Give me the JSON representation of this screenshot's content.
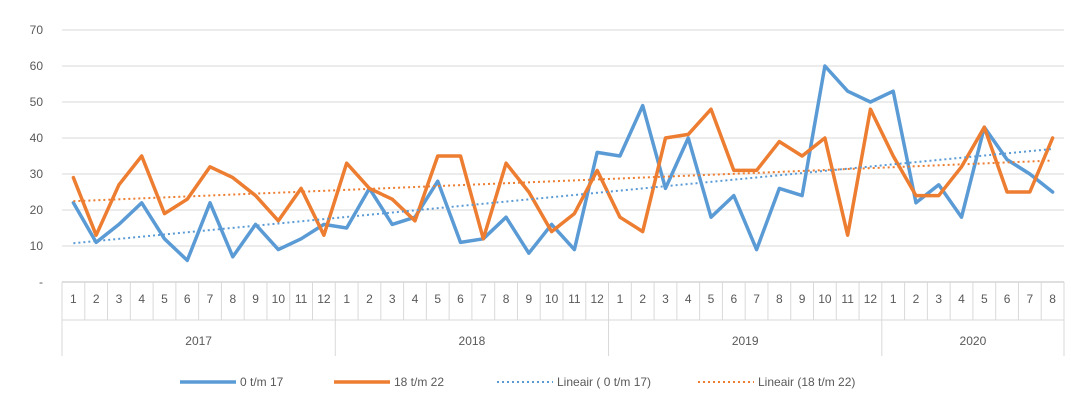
{
  "chart_data": {
    "type": "line",
    "title": "",
    "xlabel": "",
    "ylabel": "",
    "ylim": [
      0,
      70
    ],
    "yticks": [
      "-",
      "10",
      "20",
      "30",
      "40",
      "50",
      "60",
      "70"
    ],
    "grid": true,
    "legend_position": "bottom",
    "years": [
      {
        "label": "2017",
        "months": [
          "1",
          "2",
          "3",
          "4",
          "5",
          "6",
          "7",
          "8",
          "9",
          "10",
          "11",
          "12"
        ]
      },
      {
        "label": "2018",
        "months": [
          "1",
          "2",
          "3",
          "4",
          "5",
          "6",
          "7",
          "8",
          "9",
          "10",
          "11",
          "12"
        ]
      },
      {
        "label": "2019",
        "months": [
          "1",
          "2",
          "3",
          "4",
          "5",
          "6",
          "7",
          "8",
          "9",
          "10",
          "11",
          "12"
        ]
      },
      {
        "label": "2020",
        "months": [
          "1",
          "2",
          "3",
          "4",
          "5",
          "6",
          "7",
          "8"
        ]
      }
    ],
    "series": [
      {
        "name": "0 t/m 17",
        "color": "#5B9BD5",
        "style": "solid",
        "values": [
          22,
          11,
          16,
          22,
          12,
          6,
          22,
          7,
          16,
          9,
          12,
          16,
          15,
          26,
          16,
          18,
          28,
          11,
          12,
          18,
          8,
          16,
          9,
          36,
          35,
          49,
          26,
          40,
          18,
          24,
          9,
          26,
          24,
          60,
          53,
          50,
          53,
          22,
          27,
          18,
          43,
          34,
          30,
          25
        ]
      },
      {
        "name": "18 t/m 22",
        "color": "#ED7D31",
        "style": "solid",
        "values": [
          29,
          13,
          27,
          35,
          19,
          23,
          32,
          29,
          24,
          17,
          26,
          13,
          33,
          26,
          23,
          17,
          35,
          35,
          12,
          33,
          25,
          14,
          19,
          31,
          18,
          14,
          40,
          41,
          48,
          31,
          31,
          39,
          35,
          40,
          13,
          48,
          35,
          24,
          24,
          32,
          43,
          25,
          25,
          40
        ]
      },
      {
        "name": "Lineair ( 0 t/m 17)",
        "color": "#5B9BD5",
        "style": "dotted",
        "trend_of": "0 t/m 17"
      },
      {
        "name": "Lineair (18 t/m 22)",
        "color": "#ED7D31",
        "style": "dotted",
        "trend_of": "18 t/m 22"
      }
    ]
  }
}
